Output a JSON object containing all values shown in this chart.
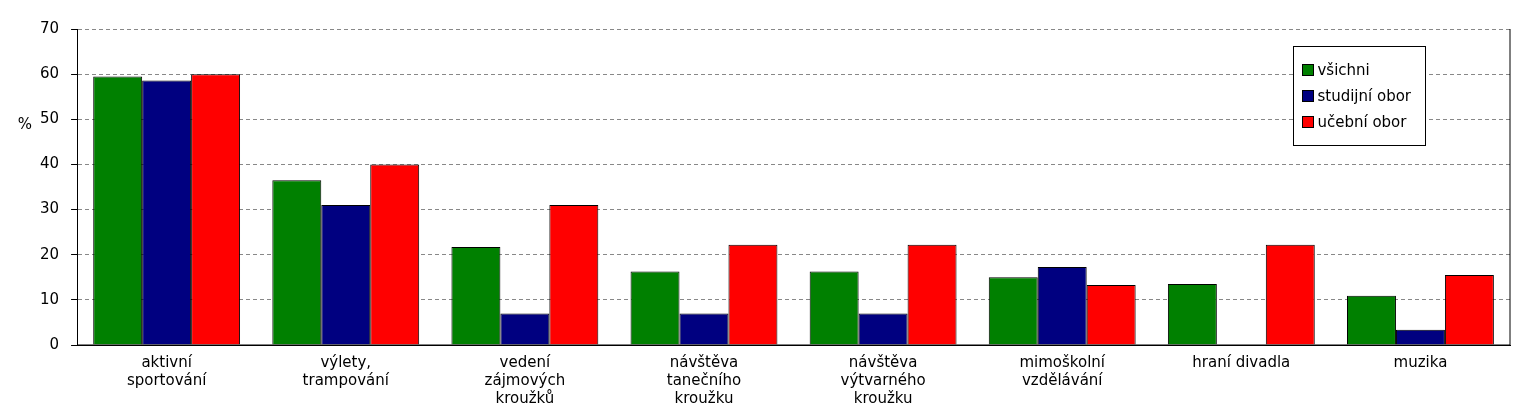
{
  "chart_data": {
    "type": "bar",
    "ylabel": "%",
    "categories": [
      "aktivní sportování",
      "výlety, trampování",
      "vedení zájmových kroužků",
      "návštěva tanečního kroužku",
      "návštěva výtvarného kroužku",
      "mimoškolní vzdělávání",
      "hraní divadla",
      "muzika"
    ],
    "series": [
      {
        "name": "všichni",
        "color": "#008000",
        "values": [
          59.5,
          36.5,
          21.7,
          16.3,
          16.3,
          15,
          13.5,
          10.9
        ]
      },
      {
        "name": "studijní obor",
        "color": "#000080",
        "values": [
          58.6,
          31,
          7,
          7,
          7,
          17.3,
          0,
          3.4
        ]
      },
      {
        "name": "učební obor",
        "color": "#ff0000",
        "values": [
          60,
          40,
          31,
          22.2,
          22.2,
          13.3,
          22.2,
          15.5
        ]
      }
    ],
    "ylim": [
      0,
      70
    ],
    "yticks": [
      0,
      10,
      20,
      30,
      40,
      50,
      60,
      70
    ],
    "grid": "y",
    "legend": "top right"
  }
}
